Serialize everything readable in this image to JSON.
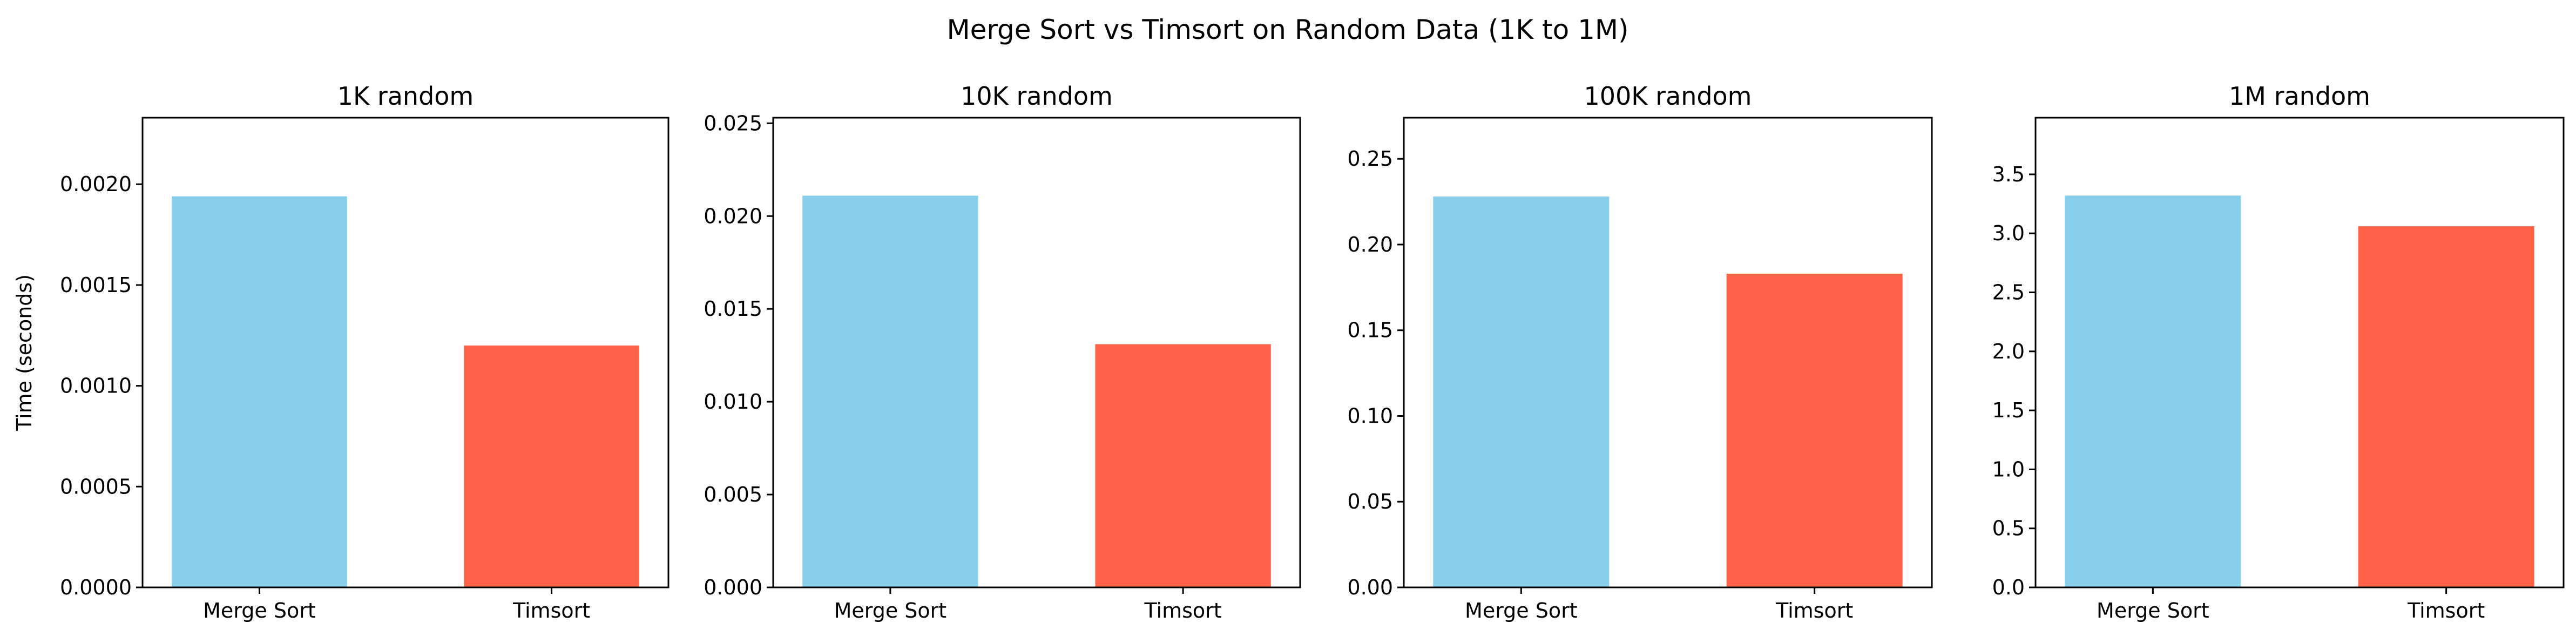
{
  "figure": {
    "title": "Merge Sort vs Timsort on Random Data (1K to 1M)",
    "colors": {
      "merge_sort": "#87CEEB",
      "timsort": "#FF6347"
    }
  },
  "chart_data": [
    {
      "type": "bar",
      "title": "1K random",
      "categories": [
        "Merge Sort",
        "Timsort"
      ],
      "values": [
        0.00194,
        0.0012
      ],
      "colors": [
        "#87CEEB",
        "#FF6347"
      ],
      "xlabel": "",
      "ylabel": "Time (seconds)",
      "ylim": [
        0,
        0.00233
      ],
      "yticks": [
        0.0,
        0.0005,
        0.001,
        0.0015,
        0.002
      ],
      "ytick_labels": [
        "0.0000",
        "0.0005",
        "0.0010",
        "0.0015",
        "0.0020"
      ],
      "grid": false
    },
    {
      "type": "bar",
      "title": "10K random",
      "categories": [
        "Merge Sort",
        "Timsort"
      ],
      "values": [
        0.0211,
        0.0131
      ],
      "colors": [
        "#87CEEB",
        "#FF6347"
      ],
      "xlabel": "",
      "ylabel": "",
      "ylim": [
        0,
        0.0253
      ],
      "yticks": [
        0.0,
        0.005,
        0.01,
        0.015,
        0.02,
        0.025
      ],
      "ytick_labels": [
        "0.000",
        "0.005",
        "0.010",
        "0.015",
        "0.020",
        "0.025"
      ],
      "grid": false
    },
    {
      "type": "bar",
      "title": "100K random",
      "categories": [
        "Merge Sort",
        "Timsort"
      ],
      "values": [
        0.228,
        0.183
      ],
      "colors": [
        "#87CEEB",
        "#FF6347"
      ],
      "xlabel": "",
      "ylabel": "",
      "ylim": [
        0,
        0.274
      ],
      "yticks": [
        0.0,
        0.05,
        0.1,
        0.15,
        0.2,
        0.25
      ],
      "ytick_labels": [
        "0.00",
        "0.05",
        "0.10",
        "0.15",
        "0.20",
        "0.25"
      ],
      "grid": false
    },
    {
      "type": "bar",
      "title": "1M random",
      "categories": [
        "Merge Sort",
        "Timsort"
      ],
      "values": [
        3.32,
        3.06
      ],
      "colors": [
        "#87CEEB",
        "#FF6347"
      ],
      "xlabel": "",
      "ylabel": "",
      "ylim": [
        0,
        3.98
      ],
      "yticks": [
        0.0,
        0.5,
        1.0,
        1.5,
        2.0,
        2.5,
        3.0,
        3.5
      ],
      "ytick_labels": [
        "0.0",
        "0.5",
        "1.0",
        "1.5",
        "2.0",
        "2.5",
        "3.0",
        "3.5"
      ],
      "grid": false
    }
  ]
}
